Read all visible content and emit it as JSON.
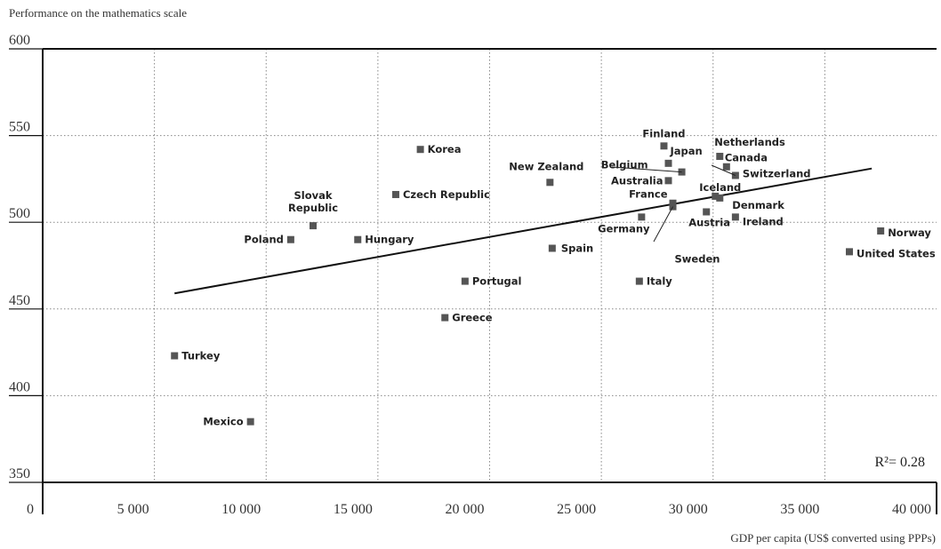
{
  "chart_data": {
    "type": "scatter",
    "ylabel": "Performance on the mathematics scale",
    "xlabel": "GDP per capita (US$ converted using PPPs)",
    "xlim": [
      0,
      40000
    ],
    "ylim": [
      350,
      600
    ],
    "xticks": [
      0,
      5000,
      10000,
      15000,
      20000,
      25000,
      30000,
      35000,
      40000
    ],
    "xtick_labels": [
      "0",
      "5 000",
      "10 000",
      "15 000",
      "20 000",
      "25 000",
      "30 000",
      "35 000",
      "40 000"
    ],
    "yticks": [
      350,
      400,
      450,
      500,
      550,
      600
    ],
    "ytick_labels": [
      "350",
      "400",
      "450",
      "500",
      "550",
      "600"
    ],
    "grid": true,
    "annotation": "R²= 0.28",
    "trendline": {
      "x": [
        5900,
        37100
      ],
      "y": [
        459,
        531
      ]
    },
    "points": [
      {
        "name": "Turkey",
        "x": 5900,
        "y": 423
      },
      {
        "name": "Mexico",
        "x": 9300,
        "y": 385
      },
      {
        "name": "Poland",
        "x": 11100,
        "y": 490
      },
      {
        "name": "Slovak Republic",
        "x": 12100,
        "y": 498
      },
      {
        "name": "Hungary",
        "x": 14100,
        "y": 490
      },
      {
        "name": "Czech Republic",
        "x": 15800,
        "y": 516
      },
      {
        "name": "Korea",
        "x": 16900,
        "y": 542
      },
      {
        "name": "Greece",
        "x": 18000,
        "y": 445
      },
      {
        "name": "Portugal",
        "x": 18900,
        "y": 466
      },
      {
        "name": "New Zealand",
        "x": 22700,
        "y": 523
      },
      {
        "name": "Spain",
        "x": 22800,
        "y": 485
      },
      {
        "name": "Germany",
        "x": 26800,
        "y": 503
      },
      {
        "name": "Italy",
        "x": 26700,
        "y": 466
      },
      {
        "name": "Finland",
        "x": 27800,
        "y": 544
      },
      {
        "name": "Japan",
        "x": 28000,
        "y": 534
      },
      {
        "name": "Belgium",
        "x": 28600,
        "y": 529
      },
      {
        "name": "Australia",
        "x": 28000,
        "y": 524
      },
      {
        "name": "France",
        "x": 28200,
        "y": 511
      },
      {
        "name": "Sweden",
        "x": 28200,
        "y": 509
      },
      {
        "name": "Austria",
        "x": 29700,
        "y": 506
      },
      {
        "name": "Iceland",
        "x": 30100,
        "y": 515
      },
      {
        "name": "Denmark",
        "x": 30300,
        "y": 514
      },
      {
        "name": "Netherlands",
        "x": 30300,
        "y": 538
      },
      {
        "name": "Canada",
        "x": 30600,
        "y": 532
      },
      {
        "name": "Switzerland",
        "x": 31000,
        "y": 527
      },
      {
        "name": "Ireland",
        "x": 31000,
        "y": 503
      },
      {
        "name": "United States",
        "x": 36100,
        "y": 483
      },
      {
        "name": "Norway",
        "x": 37500,
        "y": 495
      }
    ]
  }
}
